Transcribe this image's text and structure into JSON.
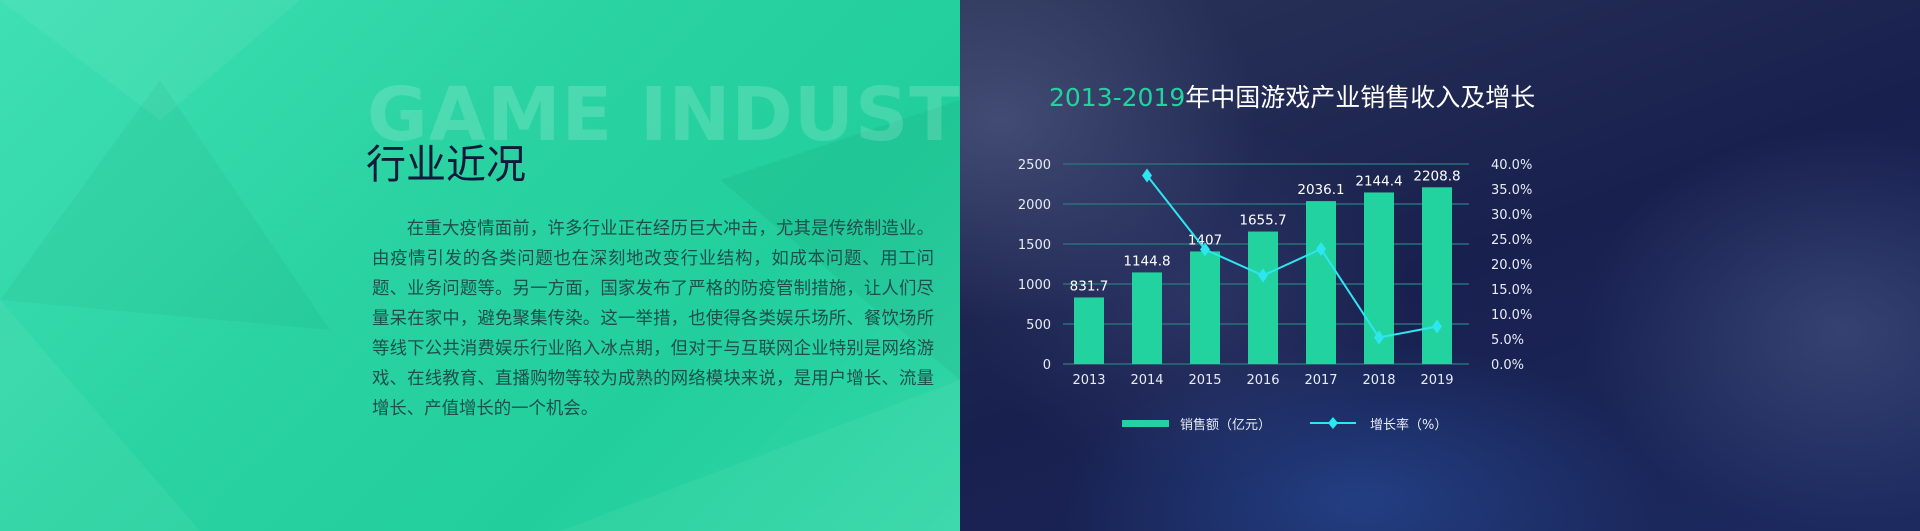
{
  "left": {
    "watermark": "GAME INDUSTRY",
    "heading": "行业近况",
    "paragraph": "在重大疫情面前，许多行业正在经历巨大冲击，尤其是传统制造业。由疫情引发的各类问题也在深刻地改变行业结构，如成本问题、用工问题、业务问题等。另一方面，国家发布了严格的防疫管制措施，让人们尽量呆在家中，避免聚集传染。这一举措，也使得各类娱乐场所、餐饮场所等线下公共消费娱乐行业陷入冰点期，但对于与互联网企业特别是网络游戏、在线教育、直播购物等较为成熟的网络模块来说，是用户增长、流量增长、产值增长的一个机会。"
  },
  "chart_data": {
    "type": "bar+line",
    "title_years": "2013-2019",
    "title_rest": "年中国游戏产业销售收入及增长",
    "categories": [
      "2013",
      "2014",
      "2015",
      "2016",
      "2017",
      "2018",
      "2019"
    ],
    "series": [
      {
        "name": "销售额（亿元）",
        "type": "bar",
        "axis": "left",
        "color": "#22d3a0",
        "values": [
          831.7,
          1144.8,
          1407,
          1655.7,
          2036.1,
          2144.4,
          2208.8
        ],
        "labels": [
          "831.7",
          "1144.8",
          "1407",
          "1655.7",
          "2036.1",
          "2144.4",
          "2208.8"
        ]
      },
      {
        "name": "增长率（%）",
        "type": "line",
        "axis": "right",
        "color": "#2ee6f0",
        "marker": "diamond",
        "values": [
          null,
          37.7,
          22.9,
          17.7,
          23.0,
          5.3,
          7.5
        ]
      }
    ],
    "y_left": {
      "range": [
        0,
        2500
      ],
      "ticks": [
        "0",
        "500",
        "1000",
        "1500",
        "2000",
        "2500"
      ]
    },
    "y_right": {
      "range": [
        0,
        40
      ],
      "ticks": [
        "0.0%",
        "5.0%",
        "10.0%",
        "15.0%",
        "20.0%",
        "25.0%",
        "30.0%",
        "35.0%",
        "40.0%"
      ]
    },
    "grid": true,
    "legend": "bottom"
  }
}
